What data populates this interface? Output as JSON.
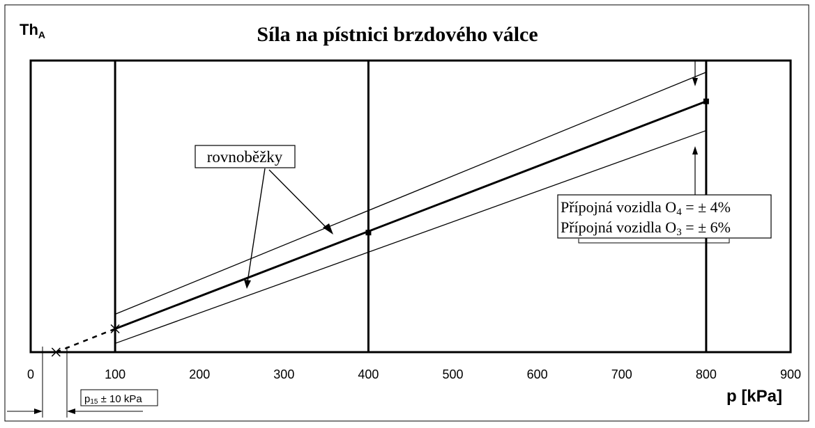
{
  "chart_data": {
    "type": "line",
    "title": "Síla na pístnici brzdového válce",
    "ylabel": "Th",
    "ylabel_sub": "A",
    "xlabel": "p [kPa]",
    "xlim": [
      0,
      900
    ],
    "x_ticks": [
      "0",
      "100",
      "200",
      "300",
      "400",
      "500",
      "600",
      "700",
      "800",
      "900"
    ],
    "vertical_lines": [
      100,
      400,
      800
    ],
    "series": [
      {
        "role": "main",
        "x": [
          100,
          800
        ],
        "y": [
          0.08,
          0.86
        ]
      },
      {
        "role": "upper",
        "x": [
          100,
          800
        ],
        "y": [
          0.13,
          0.96
        ]
      },
      {
        "role": "lower",
        "x": [
          100,
          800
        ],
        "y": [
          0.03,
          0.76
        ]
      }
    ],
    "dashed_extension": {
      "x": [
        30,
        100
      ],
      "y": [
        0.0,
        0.08
      ]
    },
    "markers": [
      {
        "x": 100,
        "y": 0.08,
        "shape": "x"
      },
      {
        "x": 30,
        "y": 0.0,
        "shape": "x"
      },
      {
        "x": 400,
        "y": 0.41,
        "shape": "square"
      },
      {
        "x": 800,
        "y": 0.86,
        "shape": "square"
      }
    ],
    "annotations": {
      "parallels": "rovnoběžky",
      "vehicle_o4": "Přípojná vozidla O",
      "vehicle_o4_sub": "4",
      "vehicle_o4_tol": " = ± 4%",
      "vehicle_o3": "Přípojná vozidla O",
      "vehicle_o3_sub": "3",
      "vehicle_o3_tol": " = ± 6%",
      "p15": "p",
      "p15_sub": "15",
      "p15_tol": " ± 10 kPa"
    },
    "grid": false
  }
}
